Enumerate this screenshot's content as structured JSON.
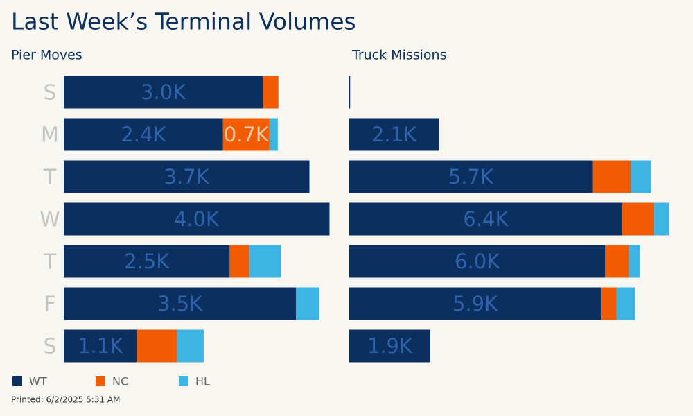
{
  "title": "Last Week’s Terminal Volumes",
  "footer": "Printed: 6/2/2025 5:31 AM",
  "chart_data": [
    {
      "type": "stacked-bar",
      "orientation": "horizontal",
      "title": "Pier Moves",
      "categories": [
        "S",
        "M",
        "T",
        "W",
        "T",
        "F",
        "S"
      ],
      "series": [
        {
          "name": "WT",
          "color": "#0b2f5f",
          "values": [
            3000,
            2400,
            3700,
            4000,
            2500,
            3500,
            1100
          ],
          "value_labels": [
            "3.0K",
            "2.4K",
            "3.7K",
            "4.0K",
            "2.5K",
            "3.5K",
            "1.1K"
          ]
        },
        {
          "name": "NC",
          "color": "#f25c05",
          "values": [
            230,
            700,
            0,
            0,
            300,
            0,
            610
          ],
          "value_labels": [
            null,
            "0.7K",
            null,
            null,
            null,
            null,
            null
          ]
        },
        {
          "name": "HL",
          "color": "#3cb4e4",
          "values": [
            10,
            125,
            10,
            10,
            470,
            350,
            400
          ]
        }
      ]
    },
    {
      "type": "stacked-bar",
      "orientation": "horizontal",
      "title": "Truck Missions",
      "series": [
        {
          "name": "WT",
          "color": "#0b2f5f",
          "values": [
            20,
            2100,
            5700,
            6400,
            6000,
            5900,
            1900
          ],
          "value_labels": [
            null,
            "2.1K",
            "5.7K",
            "6.4K",
            "6.0K",
            "5.9K",
            "1.9K"
          ]
        },
        {
          "name": "NC",
          "color": "#f25c05",
          "values": [
            0,
            0,
            900,
            750,
            560,
            370,
            0
          ]
        },
        {
          "name": "HL",
          "color": "#3cb4e4",
          "values": [
            0,
            0,
            480,
            340,
            260,
            430,
            0
          ]
        }
      ]
    }
  ]
}
